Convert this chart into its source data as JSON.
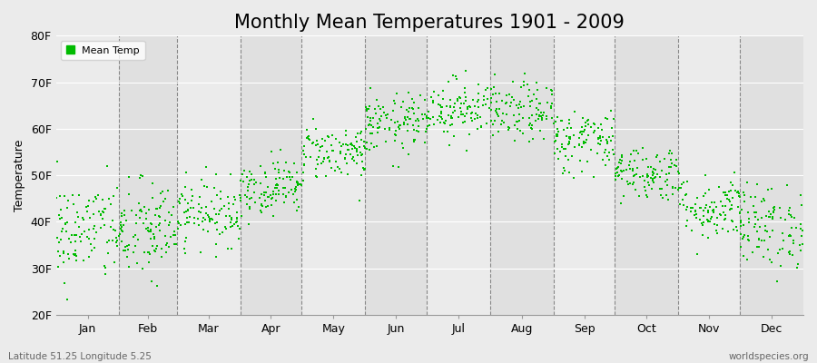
{
  "title": "Monthly Mean Temperatures 1901 - 2009",
  "ylabel": "Temperature",
  "months": [
    "Jan",
    "Feb",
    "Mar",
    "Apr",
    "May",
    "Jun",
    "Jul",
    "Aug",
    "Sep",
    "Oct",
    "Nov",
    "Dec"
  ],
  "month_days": [
    31,
    28,
    31,
    30,
    31,
    30,
    31,
    31,
    30,
    31,
    30,
    31
  ],
  "ylim": [
    20,
    80
  ],
  "yticks": [
    20,
    30,
    40,
    50,
    60,
    70,
    80
  ],
  "ytick_labels": [
    "20F",
    "30F",
    "40F",
    "50F",
    "60F",
    "70F",
    "80F"
  ],
  "dot_color": "#00BB00",
  "dot_size": 3,
  "background_color": "#EBEBEB",
  "plot_bg_even": "#EBEBEB",
  "plot_bg_odd": "#E0E0E0",
  "legend_label": "Mean Temp",
  "bottom_left": "Latitude 51.25 Longitude 5.25",
  "bottom_right": "worldspecies.org",
  "title_fontsize": 15,
  "label_fontsize": 9,
  "tick_fontsize": 9,
  "dashed_line_color": "#888888",
  "monthly_means_f": [
    38.0,
    38.0,
    42.0,
    47.5,
    55.0,
    61.0,
    64.5,
    63.5,
    57.5,
    50.5,
    43.0,
    39.0
  ],
  "monthly_stds_f": [
    5.5,
    5.5,
    3.5,
    3.0,
    3.0,
    3.2,
    3.2,
    3.2,
    3.5,
    3.0,
    3.5,
    4.5
  ],
  "years": 109
}
